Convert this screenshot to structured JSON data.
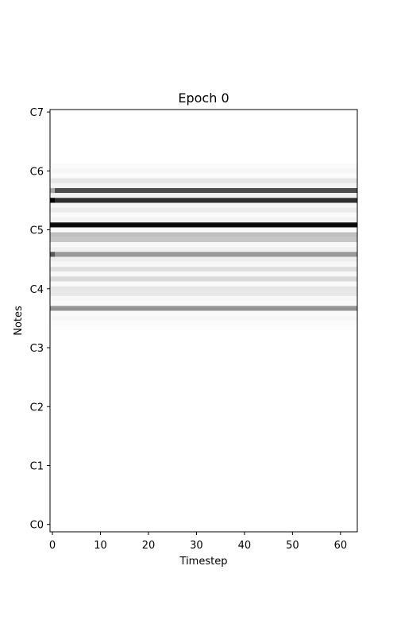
{
  "chart_data": {
    "type": "heatmap",
    "title": "Epoch 0",
    "xlabel": "Timestep",
    "ylabel": "Notes",
    "x_ticks": [
      0,
      10,
      20,
      30,
      40,
      50,
      60
    ],
    "xlim": [
      -0.5,
      63.5
    ],
    "y_tick_labels": [
      "C0",
      "C1",
      "C2",
      "C3",
      "C4",
      "C5",
      "C6",
      "C7"
    ],
    "y_tick_midi": [
      12,
      24,
      36,
      48,
      60,
      72,
      84,
      96
    ],
    "ylim_midi": [
      10.5,
      96.5
    ],
    "colormap": "greys",
    "value_range": [
      0,
      1
    ],
    "grid": false,
    "rows": [
      {
        "midi": 85,
        "value": 0.02
      },
      {
        "midi": 84,
        "value": 0.03
      },
      {
        "midi": 83,
        "value": 0.01
      },
      {
        "midi": 82,
        "value": 0.1
      },
      {
        "midi": 81,
        "value": 0.04
      },
      {
        "midi": 80,
        "value": 0.7,
        "first_step_value": 0.35
      },
      {
        "midi": 79,
        "value": 0.05
      },
      {
        "midi": 78,
        "value": 0.82,
        "first_step_value": 0.98
      },
      {
        "midi": 77,
        "value": 0.03
      },
      {
        "midi": 76,
        "value": 0.08
      },
      {
        "midi": 75,
        "value": 0.02
      },
      {
        "midi": 74,
        "value": 0.04
      },
      {
        "midi": 73,
        "value": 0.95
      },
      {
        "midi": 72,
        "value": 0.02
      },
      {
        "midi": 71,
        "value": 0.25
      },
      {
        "midi": 70,
        "value": 0.22
      },
      {
        "midi": 69,
        "value": 0.03
      },
      {
        "midi": 68,
        "value": 0.06
      },
      {
        "midi": 67,
        "value": 0.4,
        "first_step_value": 0.65
      },
      {
        "midi": 66,
        "value": 0.07
      },
      {
        "midi": 65,
        "value": 0.03
      },
      {
        "midi": 64,
        "value": 0.12
      },
      {
        "midi": 63,
        "value": 0.03
      },
      {
        "midi": 62,
        "value": 0.15
      },
      {
        "midi": 61,
        "value": 0.02
      },
      {
        "midi": 60,
        "value": 0.1
      },
      {
        "midi": 59,
        "value": 0.09
      },
      {
        "midi": 58,
        "value": 0.03
      },
      {
        "midi": 57,
        "value": 0.02
      },
      {
        "midi": 56,
        "value": 0.42
      },
      {
        "midi": 55,
        "value": 0.02
      },
      {
        "midi": 54,
        "value": 0.03
      },
      {
        "midi": 53,
        "value": 0.02
      },
      {
        "midi": 52,
        "value": 0.01
      }
    ]
  }
}
